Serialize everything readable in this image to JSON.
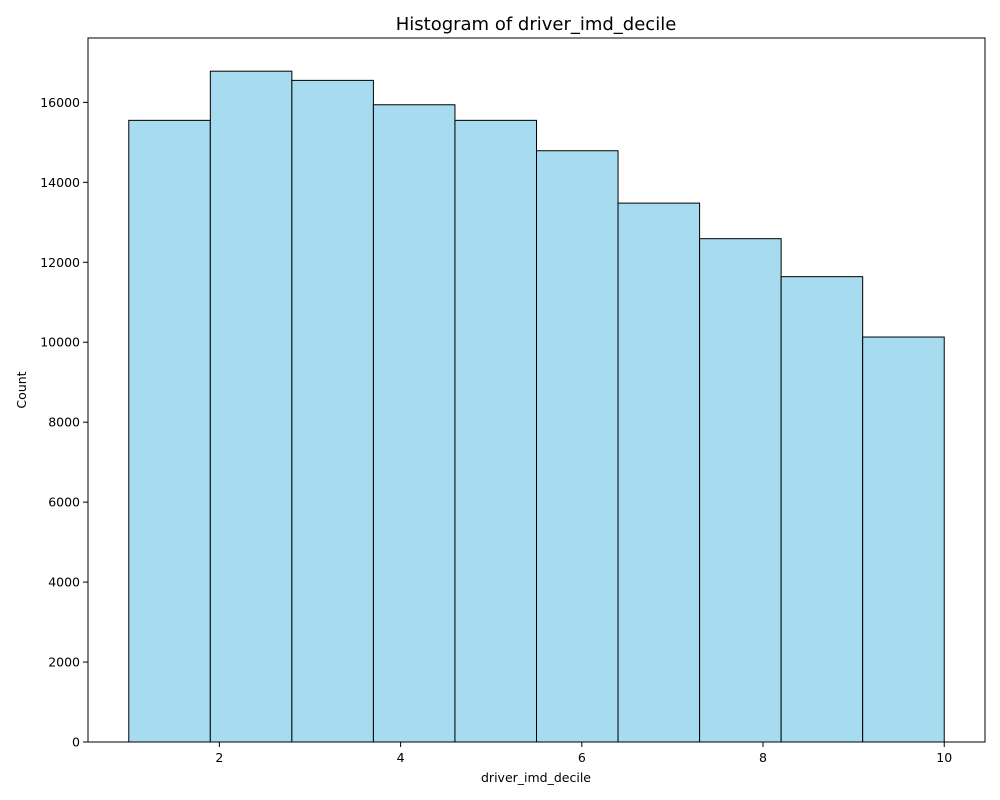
{
  "chart_data": {
    "type": "bar",
    "title": "Histogram of driver_imd_decile",
    "xlabel": "driver_imd_decile",
    "ylabel": "Count",
    "bin_edges": [
      1.0,
      1.9,
      2.8,
      3.7,
      4.6,
      5.5,
      6.4,
      7.3,
      8.2,
      9.1,
      10.0
    ],
    "values": [
      15550,
      16780,
      16550,
      15940,
      15550,
      14790,
      13480,
      12590,
      11640,
      10130
    ],
    "xlim": [
      0.55,
      10.45
    ],
    "ylim": [
      0,
      17610
    ],
    "xticks": [
      2,
      4,
      6,
      8,
      10
    ],
    "yticks": [
      0,
      2000,
      4000,
      6000,
      8000,
      10000,
      12000,
      14000,
      16000
    ],
    "grid": false,
    "legend": "none",
    "bar_color": "#a7dbef",
    "edge_color": "#000000"
  }
}
